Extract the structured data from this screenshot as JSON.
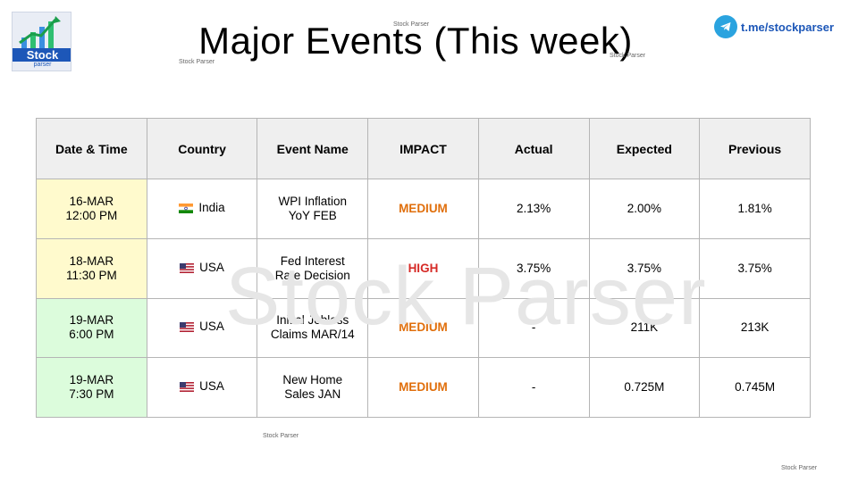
{
  "logo": {
    "text": "Stock",
    "subtext": "parser"
  },
  "title": "Major Events (This week)",
  "telegram": {
    "icon": "telegram-icon",
    "text": "t.me/stockparser",
    "color": "#2aa3df"
  },
  "watermark": {
    "big": "Stock Parser",
    "small": "Stock Parser"
  },
  "colors": {
    "impact_medium": "#e06f0c",
    "impact_high": "#d62b27",
    "row_yellow": "#fffacd",
    "row_green": "#dcfcdc"
  },
  "table": {
    "headers": [
      "Date & Time",
      "Country",
      "Event Name",
      "IMPACT",
      "Actual",
      "Expected",
      "Previous"
    ],
    "rows": [
      {
        "date": "16-MAR",
        "time": "12:00 PM",
        "flag": "india-flag-icon",
        "country": "India",
        "event_line1": "WPI Inflation",
        "event_line2": "YoY FEB",
        "impact": "MEDIUM",
        "actual": "2.13%",
        "expected": "2.00%",
        "previous": "1.81%"
      },
      {
        "date": "18-MAR",
        "time": "11:30 PM",
        "flag": "usa-flag-icon",
        "country": "USA",
        "event_line1": "Fed Interest",
        "event_line2": "Rate Decision",
        "impact": "HIGH",
        "actual": "3.75%",
        "expected": "3.75%",
        "previous": "3.75%"
      },
      {
        "date": "19-MAR",
        "time": "6:00 PM",
        "flag": "usa-flag-icon",
        "country": "USA",
        "event_line1": "Initial Jobless",
        "event_line2": "Claims MAR/14",
        "impact": "MEDIUM",
        "actual": "-",
        "expected": "211K",
        "previous": "213K"
      },
      {
        "date": "19-MAR",
        "time": "7:30 PM",
        "flag": "usa-flag-icon",
        "country": "USA",
        "event_line1": "New Home",
        "event_line2": "Sales JAN",
        "impact": "MEDIUM",
        "actual": "-",
        "expected": "0.725M",
        "previous": "0.745M"
      }
    ]
  }
}
